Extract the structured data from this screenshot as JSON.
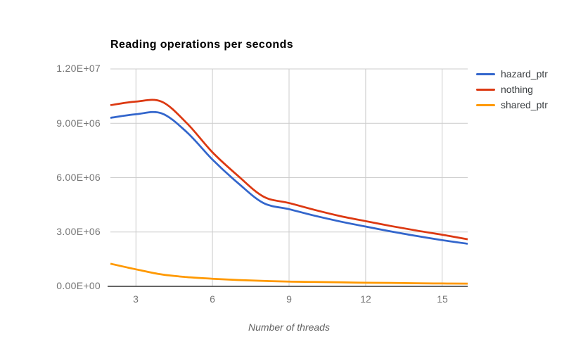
{
  "chart": {
    "title": "Reading operations per seconds",
    "x_axis_title": "Number of threads"
  },
  "chart_data": {
    "type": "line",
    "title": "Reading operations per seconds",
    "xlabel": "Number of threads",
    "ylabel": "",
    "x": [
      2,
      3,
      4,
      5,
      6,
      7,
      8,
      9,
      10,
      11,
      12,
      13,
      14,
      15,
      16
    ],
    "series": [
      {
        "name": "hazard_ptr",
        "color": "#3366cc",
        "values": [
          9300000,
          9500000,
          9550000,
          8500000,
          7000000,
          5700000,
          4600000,
          4260000,
          3900000,
          3580000,
          3300000,
          3030000,
          2780000,
          2550000,
          2350000
        ]
      },
      {
        "name": "nothing",
        "color": "#dc3912",
        "values": [
          10000000,
          10200000,
          10200000,
          9000000,
          7400000,
          6100000,
          4950000,
          4600000,
          4220000,
          3880000,
          3600000,
          3330000,
          3080000,
          2850000,
          2600000
        ]
      },
      {
        "name": "shared_ptr",
        "color": "#ff9900",
        "values": [
          1250000,
          940000,
          660000,
          510000,
          420000,
          350000,
          300000,
          260000,
          240000,
          220000,
          200000,
          190000,
          170000,
          160000,
          150000
        ]
      }
    ],
    "xlim": [
      2,
      16
    ],
    "ylim": [
      0,
      12000000
    ],
    "xticks": [
      3,
      6,
      9,
      12,
      15
    ],
    "xtick_labels": [
      "3",
      "6",
      "9",
      "12",
      "15"
    ],
    "ytick_values": [
      0,
      3000000,
      6000000,
      9000000,
      12000000
    ],
    "ytick_labels": [
      "0.00E+00",
      "3.00E+06",
      "6.00E+06",
      "9.00E+06",
      "1.20E+07"
    ],
    "grid": true,
    "smooth": true,
    "legend_position": "right",
    "colors": {
      "grid": "#cccccc",
      "axis": "#333333",
      "tick_text": "#757575",
      "axis_title_text": "#616161",
      "title_text": "#000000",
      "legend_text": "#3c4043",
      "background": "#ffffff"
    }
  }
}
